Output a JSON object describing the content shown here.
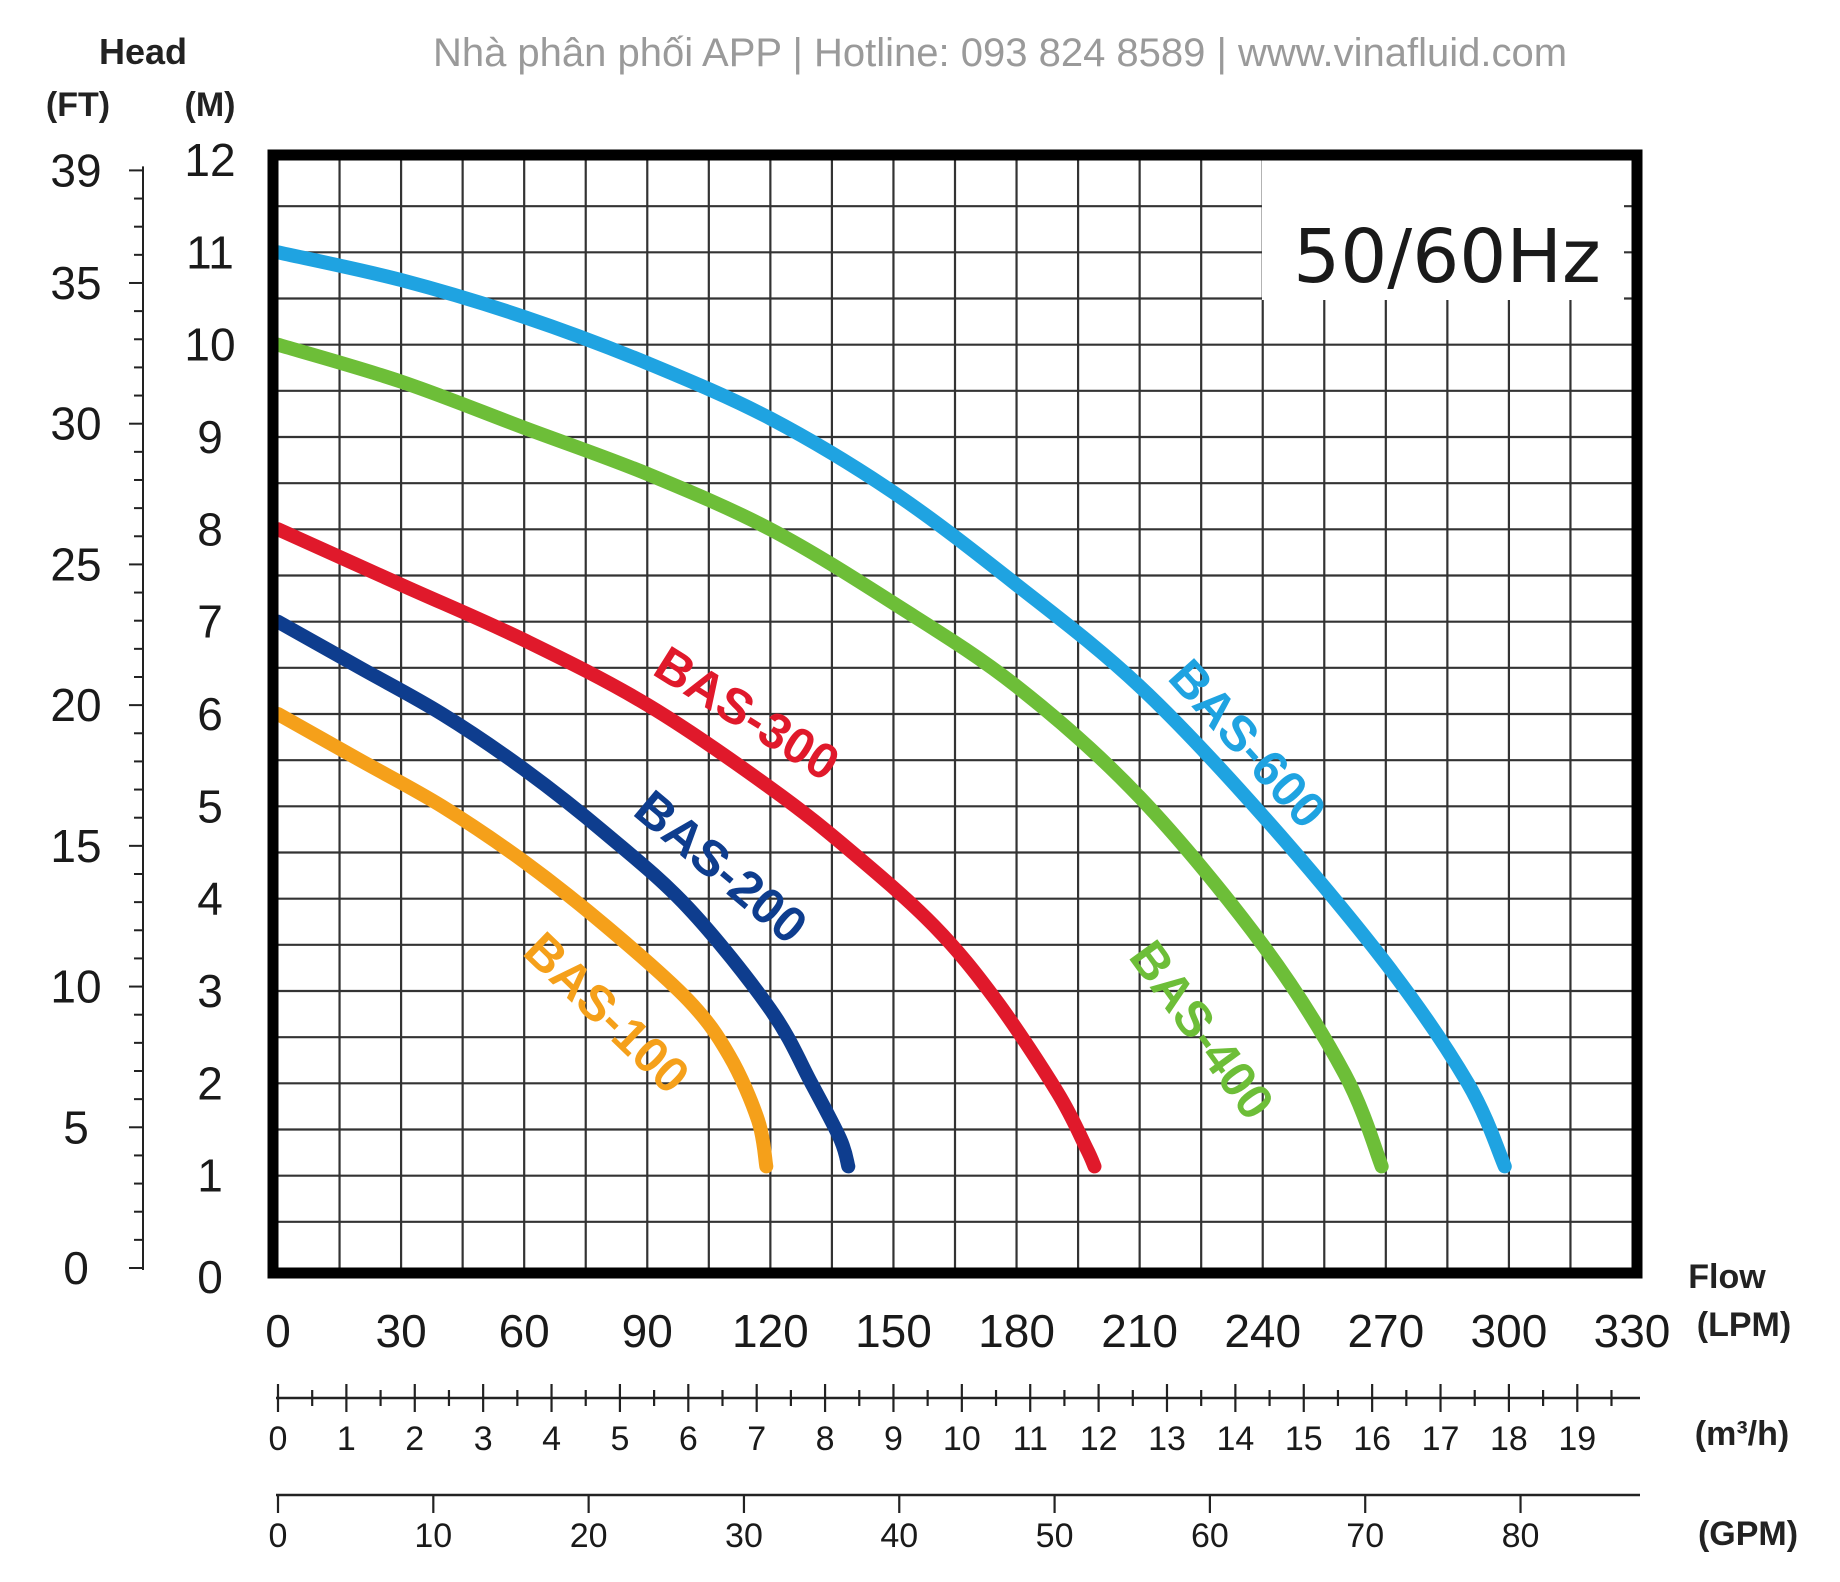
{
  "header": "Nhà phân phối APP | Hotline: 093 824 8589 | www.vinafluid.com",
  "chart_data": {
    "type": "line",
    "frequency_label": "50/60Hz",
    "y_title": "Head",
    "y_left_unit": "(FT)",
    "y_right_unit": "(M)",
    "x_title": "Flow",
    "x_unit_lpm": "(LPM)",
    "x_unit_m3h": "(m³/h)",
    "x_unit_gpm": "(GPM)",
    "xlim": [
      0,
      330
    ],
    "ylim": [
      0,
      12
    ],
    "x_ticks_lpm": [
      "0",
      "30",
      "60",
      "90",
      "120",
      "150",
      "180",
      "210",
      "240",
      "270",
      "300",
      "330"
    ],
    "y_ticks_m": [
      "0",
      "1",
      "2",
      "3",
      "4",
      "5",
      "6",
      "7",
      "8",
      "9",
      "10",
      "11",
      "12"
    ],
    "y_ticks_ft": [
      "0",
      "5",
      "10",
      "15",
      "20",
      "25",
      "30",
      "35",
      "39"
    ],
    "x_ticks_m3h": [
      "0",
      "1",
      "2",
      "3",
      "4",
      "5",
      "6",
      "7",
      "8",
      "9",
      "10",
      "11",
      "12",
      "13",
      "14",
      "15",
      "16",
      "17",
      "18",
      "19"
    ],
    "x_ticks_gpm": [
      "0",
      "10",
      "20",
      "30",
      "40",
      "50",
      "60",
      "70",
      "80"
    ],
    "grid": true,
    "series": [
      {
        "name": "BAS-100",
        "color": "#F5A01A",
        "x": [
          0,
          20,
          40,
          60,
          80,
          100,
          110,
          117,
          119
        ],
        "y": [
          6.0,
          5.5,
          5.0,
          4.4,
          3.7,
          2.9,
          2.3,
          1.6,
          1.1
        ]
      },
      {
        "name": "BAS-200",
        "color": "#0E3D8E",
        "x": [
          0,
          20,
          40,
          60,
          80,
          100,
          120,
          130,
          137,
          139
        ],
        "y": [
          7.0,
          6.5,
          6.0,
          5.4,
          4.7,
          3.9,
          2.8,
          2.0,
          1.4,
          1.1
        ]
      },
      {
        "name": "BAS-300",
        "color": "#E0192B",
        "x": [
          0,
          30,
          60,
          90,
          120,
          140,
          160,
          175,
          190,
          197,
          199
        ],
        "y": [
          8.0,
          7.4,
          6.8,
          6.1,
          5.2,
          4.5,
          3.7,
          2.9,
          1.9,
          1.3,
          1.1
        ]
      },
      {
        "name": "BAS-400",
        "color": "#6DBE38",
        "x": [
          0,
          30,
          60,
          90,
          120,
          150,
          180,
          210,
          240,
          260,
          269
        ],
        "y": [
          10.0,
          9.6,
          9.1,
          8.6,
          8.0,
          7.2,
          6.3,
          5.1,
          3.5,
          2.1,
          1.1
        ]
      },
      {
        "name": "BAS-600",
        "color": "#1FA3E1",
        "x": [
          0,
          30,
          60,
          90,
          120,
          150,
          180,
          210,
          240,
          270,
          290,
          299
        ],
        "y": [
          11.0,
          10.7,
          10.3,
          9.8,
          9.2,
          8.4,
          7.4,
          6.3,
          4.9,
          3.3,
          2.0,
          1.1
        ]
      }
    ]
  }
}
